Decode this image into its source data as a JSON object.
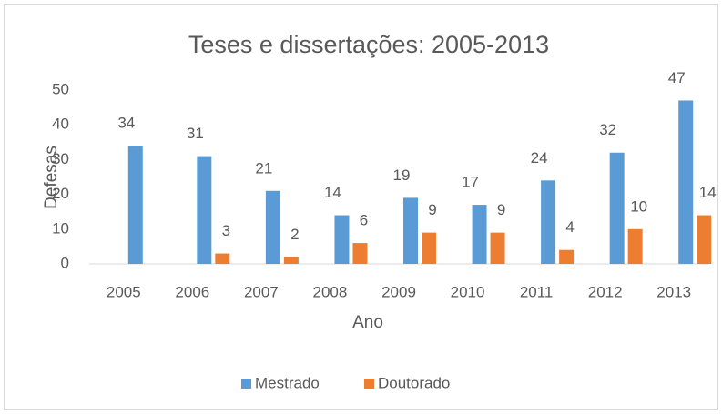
{
  "chart_data": {
    "type": "bar",
    "title": "Teses e dissertações: 2005-2013",
    "x_label": "Ano",
    "y_label": "Defesas",
    "categories": [
      "2005",
      "2006",
      "2007",
      "2008",
      "2009",
      "2010",
      "2011",
      "2012",
      "2013"
    ],
    "series": [
      {
        "name": "Mestrado",
        "color": "#5b9bd5",
        "values": [
          34,
          31,
          21,
          14,
          19,
          17,
          24,
          32,
          47
        ]
      },
      {
        "name": "Doutorado",
        "color": "#ed7d31",
        "values": [
          null,
          3,
          2,
          6,
          9,
          9,
          4,
          10,
          14
        ]
      }
    ],
    "ylim": [
      0,
      50
    ],
    "yticks": [
      0,
      10,
      20,
      30,
      40,
      50
    ],
    "grid": false,
    "legend": "bottom"
  }
}
